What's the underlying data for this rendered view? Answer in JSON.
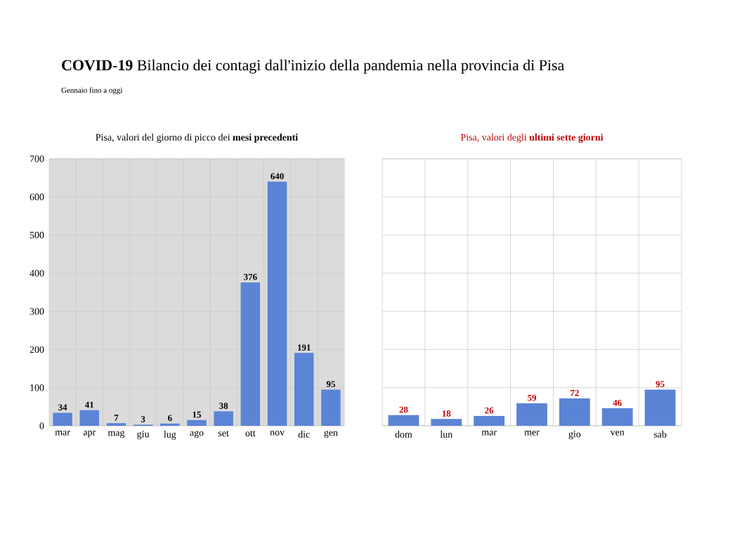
{
  "chart_data": [
    {
      "type": "bar",
      "title": "**COVID-19** Bilancio dei contagi dall'inizio della pandemia nella provincia di Pisa",
      "subtitle": "Gennaio fino a oggi",
      "annotations": [
        "Pisa, valori del giorno di picco dei **mesi precedenti**"
      ],
      "categories": [
        "mar",
        "apr",
        "mag",
        "giu",
        "lug",
        "ago",
        "set",
        "ott",
        "nov",
        "dic",
        "gen"
      ],
      "values": [
        34,
        41,
        7,
        3,
        6,
        15,
        38,
        376,
        640,
        191,
        95
      ],
      "color": "#5b84d6",
      "ylim": [
        0,
        700
      ],
      "yticks": [
        0,
        100,
        200,
        300,
        400,
        500,
        600,
        700
      ],
      "grid": true,
      "data_labels": true
    },
    {
      "type": "bar",
      "annotations": [
        "Pisa, valori degli **ultimi sette giorni**"
      ],
      "categories": [
        "dom",
        "lun",
        "mar",
        "mer",
        "gio",
        "ven",
        "sab"
      ],
      "values": [
        28,
        18,
        26,
        59,
        72,
        46,
        95
      ],
      "color": "#5b84d6",
      "ylim": [
        0,
        700
      ],
      "yticks": [
        0,
        100,
        200,
        300,
        400,
        500,
        600,
        700
      ],
      "grid": true,
      "data_labels": true,
      "tick_labels": "x"
    }
  ]
}
